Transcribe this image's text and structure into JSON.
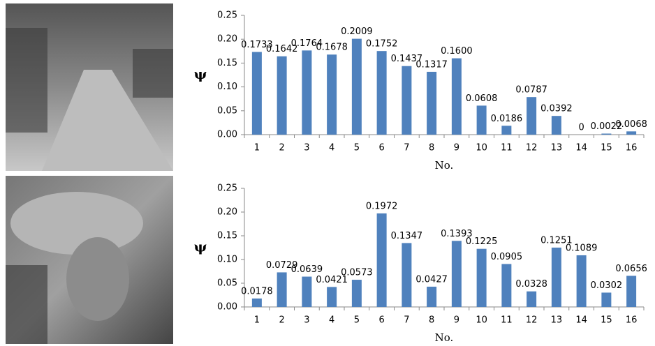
{
  "chart_data": [
    {
      "type": "bar",
      "y_label": "ψ",
      "x_label": "No.",
      "categories": [
        "1",
        "2",
        "3",
        "4",
        "5",
        "6",
        "7",
        "8",
        "9",
        "10",
        "11",
        "12",
        "13",
        "14",
        "15",
        "16"
      ],
      "values": [
        0.1733,
        0.1642,
        0.1764,
        0.1678,
        0.2009,
        0.1752,
        0.1437,
        0.1317,
        0.16,
        0.0608,
        0.0186,
        0.0787,
        0.0392,
        0,
        0.0022,
        0.0068
      ],
      "value_labels": [
        "0.1733",
        "0.1642",
        "0.1764",
        "0.1678",
        "0.2009",
        "0.1752",
        "0.1437",
        "0.1317",
        "0.1600",
        "0.0608",
        "0.0186",
        "0.0787",
        "0.0392",
        "0",
        "0.0022",
        "0.0068"
      ],
      "color": "#4f81bd",
      "ylim": [
        0,
        0.25
      ],
      "yticks": [
        {
          "value": 0,
          "label": "0.00"
        },
        {
          "value": 0.05,
          "label": "0.05"
        },
        {
          "value": 0.1,
          "label": "0.10"
        },
        {
          "value": 0.15,
          "label": "0.15"
        },
        {
          "value": 0.2,
          "label": "0.20"
        },
        {
          "value": 0.25,
          "label": "0.25"
        }
      ]
    },
    {
      "type": "bar",
      "y_label": "ψ",
      "x_label": "No.",
      "categories": [
        "1",
        "2",
        "3",
        "4",
        "5",
        "6",
        "7",
        "8",
        "9",
        "10",
        "11",
        "12",
        "13",
        "14",
        "15",
        "16"
      ],
      "values": [
        0.0178,
        0.0729,
        0.0639,
        0.0421,
        0.0573,
        0.1972,
        0.1347,
        0.0427,
        0.1393,
        0.1225,
        0.0905,
        0.0328,
        0.1251,
        0.1089,
        0.0302,
        0.0656
      ],
      "value_labels": [
        "0.0178",
        "0.0729",
        "0.0639",
        "0.0421",
        "0.0573",
        "0.1972",
        "0.1347",
        "0.0427",
        "0.1393",
        "0.1225",
        "0.0905",
        "0.0328",
        "0.1251",
        "0.1089",
        "0.0302",
        "0.0656"
      ],
      "color": "#4f81bd",
      "ylim": [
        0,
        0.25
      ],
      "yticks": [
        {
          "value": 0,
          "label": "0.00"
        },
        {
          "value": 0.05,
          "label": "0.05"
        },
        {
          "value": 0.1,
          "label": "0.10"
        },
        {
          "value": 0.15,
          "label": "0.15"
        },
        {
          "value": 0.2,
          "label": "0.20"
        },
        {
          "value": 0.25,
          "label": "0.25"
        }
      ]
    }
  ]
}
